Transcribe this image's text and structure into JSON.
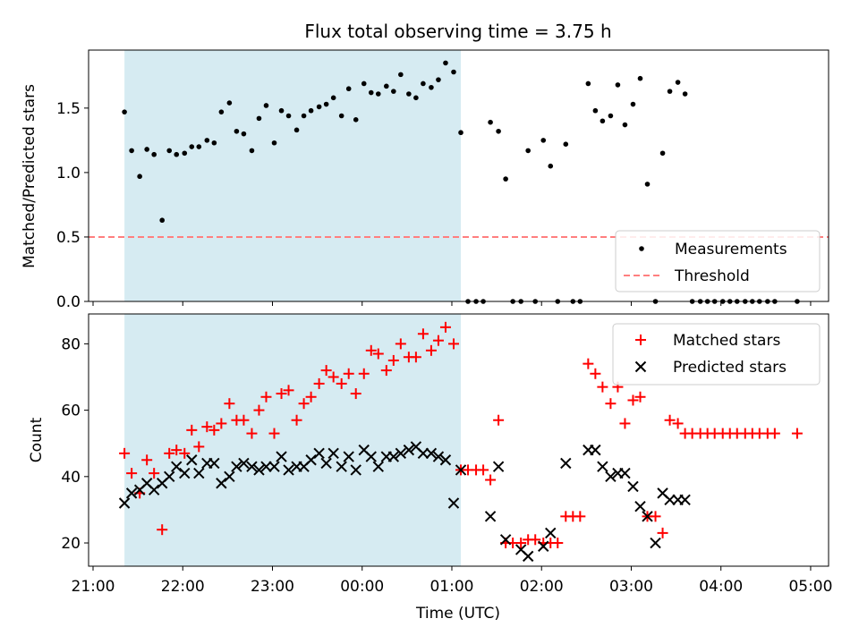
{
  "chart_data": [
    {
      "type": "scatter",
      "title": "Flux total observing time = 3.75 h",
      "xlabel": "",
      "ylabel": "Matched/Predicted stars",
      "ylim": [
        0,
        1.95
      ],
      "yticks": [
        0.0,
        0.5,
        1.0,
        1.5
      ],
      "ytick_labels": [
        "0.0",
        "0.5",
        "1.0",
        "1.5"
      ],
      "xlim_hours": [
        20.95,
        29.2
      ],
      "xticks_hours": [
        21,
        22,
        23,
        24,
        25,
        26,
        27,
        28,
        29
      ],
      "shaded_span_hours": [
        21.35,
        25.1
      ],
      "legend_position": "lower right",
      "threshold": {
        "name": "Threshold",
        "value": 0.5,
        "color": "#ff7f7f"
      },
      "series": [
        {
          "name": "Measurements",
          "color": "#000000",
          "marker": "dot",
          "x": [
            21.35,
            21.43,
            21.52,
            21.6,
            21.68,
            21.77,
            21.85,
            21.93,
            22.02,
            22.1,
            22.18,
            22.27,
            22.35,
            22.43,
            22.52,
            22.6,
            22.68,
            22.77,
            22.85,
            22.93,
            23.02,
            23.1,
            23.18,
            23.27,
            23.35,
            23.43,
            23.52,
            23.6,
            23.68,
            23.77,
            23.85,
            23.93,
            24.02,
            24.1,
            24.18,
            24.27,
            24.35,
            24.43,
            24.52,
            24.6,
            24.68,
            24.77,
            24.85,
            24.93,
            25.02,
            25.1,
            25.18,
            25.27,
            25.35,
            25.43,
            25.52,
            25.6,
            25.68,
            25.77,
            25.85,
            25.93,
            26.02,
            26.1,
            26.18,
            26.27,
            26.35,
            26.43,
            26.52,
            26.6,
            26.68,
            26.77,
            26.85,
            26.93,
            27.02,
            27.1,
            27.18,
            27.27,
            27.35,
            27.43,
            27.52,
            27.6,
            27.68,
            27.77,
            27.85,
            27.93,
            28.02,
            28.1,
            28.18,
            28.27,
            28.35,
            28.43,
            28.52,
            28.6,
            28.85
          ],
          "y": [
            1.47,
            1.17,
            0.97,
            1.18,
            1.14,
            0.63,
            1.17,
            1.14,
            1.15,
            1.2,
            1.2,
            1.25,
            1.23,
            1.47,
            1.54,
            1.32,
            1.3,
            1.17,
            1.42,
            1.52,
            1.23,
            1.48,
            1.44,
            1.33,
            1.44,
            1.48,
            1.51,
            1.53,
            1.58,
            1.44,
            1.65,
            1.41,
            1.69,
            1.62,
            1.61,
            1.67,
            1.63,
            1.76,
            1.61,
            1.58,
            1.69,
            1.66,
            1.72,
            1.85,
            1.78,
            1.31,
            0,
            0,
            0,
            1.39,
            1.32,
            0.95,
            0,
            0,
            1.17,
            0,
            1.25,
            1.05,
            0,
            1.22,
            0,
            0,
            1.69,
            1.48,
            1.4,
            1.44,
            1.68,
            1.37,
            1.53,
            1.73,
            0.91,
            0,
            1.15,
            1.63,
            1.7,
            1.61,
            0,
            0,
            0,
            0,
            0,
            0,
            0,
            0,
            0,
            0,
            0,
            0,
            0
          ]
        }
      ]
    },
    {
      "type": "scatter",
      "title": "",
      "xlabel": "Time (UTC)",
      "ylabel": "Count",
      "ylim": [
        13,
        89
      ],
      "yticks": [
        20,
        40,
        60,
        80
      ],
      "ytick_labels": [
        "20",
        "40",
        "60",
        "80"
      ],
      "xlim_hours": [
        20.95,
        29.2
      ],
      "xticks_hours": [
        21,
        22,
        23,
        24,
        25,
        26,
        27,
        28,
        29
      ],
      "xtick_labels": [
        "21:00",
        "22:00",
        "23:00",
        "00:00",
        "01:00",
        "02:00",
        "03:00",
        "04:00",
        "05:00"
      ],
      "shaded_span_hours": [
        21.35,
        25.1
      ],
      "legend_position": "upper right",
      "series": [
        {
          "name": "Matched stars",
          "color": "#ff0000",
          "marker": "plus",
          "x": [
            21.35,
            21.43,
            21.52,
            21.6,
            21.68,
            21.77,
            21.85,
            21.93,
            22.02,
            22.1,
            22.18,
            22.27,
            22.35,
            22.43,
            22.52,
            22.6,
            22.68,
            22.77,
            22.85,
            22.93,
            23.02,
            23.1,
            23.18,
            23.27,
            23.35,
            23.43,
            23.52,
            23.6,
            23.68,
            23.77,
            23.85,
            23.93,
            24.02,
            24.1,
            24.18,
            24.27,
            24.35,
            24.43,
            24.52,
            24.6,
            24.68,
            24.77,
            24.85,
            24.93,
            25.02,
            25.1,
            25.18,
            25.27,
            25.35,
            25.43,
            25.52,
            25.6,
            25.68,
            25.77,
            25.85,
            25.93,
            26.02,
            26.1,
            26.18,
            26.27,
            26.35,
            26.43,
            26.52,
            26.6,
            26.68,
            26.77,
            26.85,
            26.93,
            27.02,
            27.1,
            27.18,
            27.27,
            27.35,
            27.43,
            27.52,
            27.6,
            27.68,
            27.77,
            27.85,
            27.93,
            28.02,
            28.1,
            28.18,
            28.27,
            28.35,
            28.43,
            28.52,
            28.6,
            28.85
          ],
          "y": [
            47,
            41,
            35,
            45,
            41,
            24,
            47,
            48,
            47,
            54,
            49,
            55,
            54,
            56,
            62,
            57,
            57,
            53,
            60,
            64,
            53,
            65,
            66,
            57,
            62,
            64,
            68,
            72,
            70,
            68,
            71,
            65,
            71,
            78,
            77,
            72,
            75,
            80,
            76,
            76,
            83,
            78,
            81,
            85,
            80,
            42,
            42,
            42,
            42,
            39,
            57,
            20,
            20,
            20,
            21,
            21,
            20,
            20,
            20,
            28,
            28,
            28,
            74,
            71,
            67,
            62,
            67,
            56,
            63,
            64,
            28,
            28,
            23,
            57,
            56,
            53,
            53,
            53,
            53,
            53,
            53,
            53,
            53,
            53,
            53,
            53,
            53,
            53,
            53
          ]
        },
        {
          "name": "Predicted stars",
          "color": "#000000",
          "marker": "x",
          "x": [
            21.35,
            21.43,
            21.52,
            21.6,
            21.68,
            21.77,
            21.85,
            21.93,
            22.02,
            22.1,
            22.18,
            22.27,
            22.35,
            22.43,
            22.52,
            22.6,
            22.68,
            22.77,
            22.85,
            22.93,
            23.02,
            23.1,
            23.18,
            23.27,
            23.35,
            23.43,
            23.52,
            23.6,
            23.68,
            23.77,
            23.85,
            23.93,
            24.02,
            24.1,
            24.18,
            24.27,
            24.35,
            24.43,
            24.52,
            24.6,
            24.68,
            24.77,
            24.85,
            24.93,
            25.02,
            25.1,
            25.43,
            25.52,
            25.6,
            25.77,
            25.85,
            26.02,
            26.1,
            26.27,
            26.52,
            26.6,
            26.68,
            26.77,
            26.85,
            26.93,
            27.02,
            27.1,
            27.18,
            27.27,
            27.35,
            27.43,
            27.52,
            27.6
          ],
          "y": [
            32,
            35,
            36,
            38,
            36,
            38,
            40,
            43,
            41,
            45,
            41,
            44,
            44,
            38,
            40,
            43,
            44,
            43,
            42,
            43,
            43,
            46,
            42,
            43,
            43,
            45,
            47,
            44,
            47,
            43,
            46,
            42,
            48,
            46,
            43,
            46,
            46,
            47,
            48,
            49,
            47,
            47,
            46,
            45,
            32,
            42,
            28,
            43,
            21,
            18,
            16,
            19,
            23,
            44,
            48,
            48,
            43,
            40,
            41,
            41,
            37,
            31,
            28,
            20,
            35,
            33,
            33,
            33
          ]
        }
      ]
    }
  ]
}
